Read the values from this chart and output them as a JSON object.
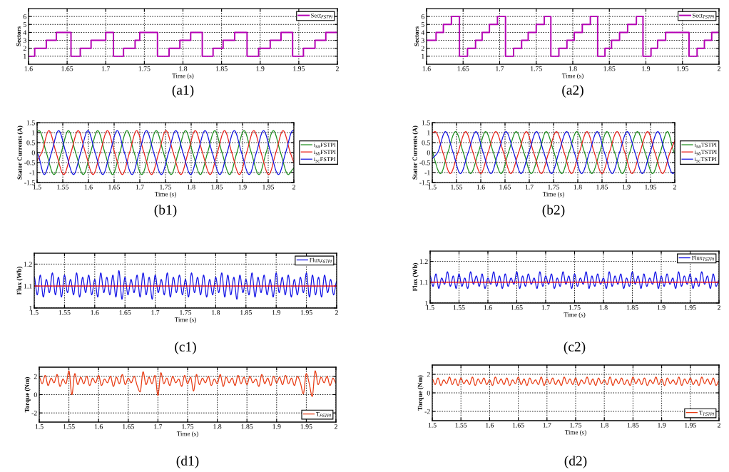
{
  "chart_data": [
    {
      "type": "step",
      "xlabel": "Time (s)",
      "ylabel": "Sectors",
      "annotations": [
        "(a1)"
      ],
      "grid": true,
      "legend": "top right",
      "xlim": [
        1.6,
        2
      ],
      "xticks": [
        1.6,
        1.65,
        1.7,
        1.75,
        1.8,
        1.85,
        1.9,
        1.95,
        2
      ],
      "ylim": [
        0,
        7
      ],
      "yticks": [
        1,
        2,
        3,
        4,
        5,
        6
      ],
      "series": [
        {
          "name": "Sect$_{FSTPI}$",
          "color": "#b400b4",
          "x": [
            1.6,
            1.608,
            1.623,
            1.636,
            1.655,
            1.667,
            1.681,
            1.7,
            1.71,
            1.723,
            1.738,
            1.744,
            1.767,
            1.782,
            1.796,
            1.81,
            1.825,
            1.839,
            1.852,
            1.867,
            1.883,
            1.898,
            1.913,
            1.927,
            1.942,
            1.956,
            1.971,
            1.985,
            2
          ],
          "values": [
            1,
            2,
            3,
            4,
            1,
            2,
            3,
            4,
            1,
            2,
            3,
            4,
            1,
            2,
            3,
            4,
            1,
            2,
            3,
            4,
            1,
            2,
            3,
            4,
            1,
            2,
            3,
            4,
            4
          ]
        }
      ]
    },
    {
      "type": "step",
      "xlabel": "Time (s)",
      "ylabel": "Sectors",
      "annotations": [
        "(a2)"
      ],
      "grid": true,
      "legend": "top right",
      "xlim": [
        1.6,
        2
      ],
      "xticks": [
        1.6,
        1.65,
        1.7,
        1.75,
        1.8,
        1.85,
        1.9,
        1.95,
        2
      ],
      "ylim": [
        0,
        7
      ],
      "yticks": [
        1,
        2,
        3,
        4,
        5,
        6
      ],
      "series": [
        {
          "name": "Sect$_{TSTPI}$",
          "color": "#b400b4",
          "x": [
            1.6,
            1.613,
            1.623,
            1.634,
            1.645,
            1.656,
            1.667,
            1.676,
            1.686,
            1.697,
            1.708,
            1.719,
            1.73,
            1.739,
            1.75,
            1.761,
            1.77,
            1.781,
            1.792,
            1.802,
            1.813,
            1.824,
            1.834,
            1.844,
            1.853,
            1.864,
            1.875,
            1.887,
            1.896,
            1.907,
            1.916,
            1.927,
            1.959,
            1.97,
            1.98,
            1.99,
            2
          ],
          "values": [
            3,
            4,
            5,
            6,
            1,
            2,
            3,
            4,
            5,
            6,
            1,
            2,
            3,
            4,
            5,
            6,
            1,
            2,
            3,
            4,
            5,
            6,
            1,
            2,
            3,
            4,
            5,
            6,
            1,
            2,
            3,
            4,
            1,
            2,
            3,
            4,
            4
          ]
        }
      ]
    },
    {
      "type": "line",
      "xlabel": "Time (s)",
      "ylabel": "Stator Currents (A)",
      "annotations": [
        "(b1)"
      ],
      "grid": true,
      "legend": "right",
      "xlim": [
        1.5,
        2
      ],
      "xticks": [
        1.5,
        1.55,
        1.6,
        1.65,
        1.7,
        1.75,
        1.8,
        1.85,
        1.9,
        1.95,
        2
      ],
      "ylim": [
        -1.5,
        1.5
      ],
      "yticks": [
        -1.5,
        -1,
        -0.5,
        0,
        0.5,
        1,
        1.5
      ],
      "series": [
        {
          "name": "i$_{sa}$FSTPI",
          "color": "#1f8f1f",
          "x": [
            1.5,
            1.504,
            1.518,
            1.533,
            1.547,
            1.561,
            1.575,
            1.59,
            1.604,
            1.618,
            1.632,
            1.647,
            1.661,
            1.675,
            1.689,
            1.704,
            1.718,
            1.732,
            1.746,
            1.761,
            1.775,
            1.789,
            1.803,
            1.818,
            1.832,
            1.846,
            1.86,
            1.875,
            1.889,
            1.903,
            1.917,
            1.932,
            1.946,
            1.96,
            1.974,
            1.989,
            2
          ],
          "values": [
            1.05,
            1.1,
            0,
            -1.1,
            0,
            1.1,
            0,
            -1.1,
            0,
            1.1,
            0,
            -1.1,
            0,
            1.1,
            0,
            -1.1,
            0,
            1.1,
            0,
            -1.1,
            0,
            1.1,
            0,
            -1.1,
            0,
            1.1,
            0,
            -1.1,
            0,
            1.1,
            0,
            -1.1,
            0,
            1.1,
            0,
            -1.1,
            -0.8
          ]
        },
        {
          "name": "i$_{sb}$FSTPI",
          "color": "#e8231c",
          "x": [
            1.5,
            1.509,
            1.523,
            1.537,
            1.552,
            1.566,
            1.58,
            1.594,
            1.609,
            1.623,
            1.637,
            1.651,
            1.666,
            1.68,
            1.694,
            1.708,
            1.723,
            1.737,
            1.751,
            1.765,
            1.78,
            1.794,
            1.808,
            1.822,
            1.837,
            1.851,
            1.865,
            1.879,
            1.894,
            1.908,
            1.922,
            1.936,
            1.951,
            1.965,
            1.979,
            1.993,
            2
          ],
          "values": [
            -0.4,
            0,
            1.1,
            0,
            -1.1,
            0,
            1.1,
            0,
            -1.1,
            0,
            1.1,
            0,
            -1.1,
            0,
            1.1,
            0,
            -1.1,
            0,
            1.1,
            0,
            -1.1,
            0,
            1.1,
            0,
            -1.1,
            0,
            1.1,
            0,
            -1.1,
            0,
            1.1,
            0,
            -1.1,
            0,
            1.1,
            0,
            -0.5
          ]
        },
        {
          "name": "i$_{sc}$FSTPI",
          "color": "#1414e0",
          "x": [
            1.5,
            1.514,
            1.528,
            1.542,
            1.556,
            1.571,
            1.585,
            1.599,
            1.613,
            1.628,
            1.642,
            1.656,
            1.67,
            1.685,
            1.699,
            1.713,
            1.727,
            1.742,
            1.756,
            1.77,
            1.784,
            1.799,
            1.813,
            1.827,
            1.841,
            1.856,
            1.87,
            1.884,
            1.898,
            1.913,
            1.927,
            1.941,
            1.955,
            1.97,
            1.984,
            1.998,
            2
          ],
          "values": [
            -0.05,
            -1.1,
            0,
            1.1,
            0,
            -1.1,
            0,
            1.1,
            0,
            -1.1,
            0,
            1.1,
            0,
            -1.1,
            0,
            1.1,
            0,
            -1.1,
            0,
            1.1,
            0,
            -1.1,
            0,
            1.1,
            0,
            -1.1,
            0,
            1.1,
            0,
            -1.1,
            0,
            1.1,
            0,
            -1.1,
            0,
            1.1,
            1.09
          ]
        }
      ]
    },
    {
      "type": "line",
      "xlabel": "Time (s)",
      "ylabel": "Stator Currents (A)",
      "annotations": [
        "(b2)"
      ],
      "grid": true,
      "legend": "right",
      "xlim": [
        1.5,
        2
      ],
      "xticks": [
        1.5,
        1.55,
        1.6,
        1.65,
        1.7,
        1.75,
        1.8,
        1.85,
        1.9,
        1.95,
        2
      ],
      "ylim": [
        -1.5,
        1.5
      ],
      "yticks": [
        -1.5,
        -1,
        -0.5,
        0,
        0.5,
        1,
        1.5
      ],
      "series": [
        {
          "name": "i$_{sa}$TSTPI",
          "color": "#1f8f1f",
          "x": [
            1.5,
            1.501,
            1.517,
            1.532,
            1.548,
            1.564,
            1.579,
            1.595,
            1.61,
            1.626,
            1.642,
            1.657,
            1.673,
            1.689,
            1.704,
            1.72,
            1.735,
            1.751,
            1.767,
            1.782,
            1.798,
            1.814,
            1.829,
            1.845,
            1.86,
            1.876,
            1.892,
            1.907,
            1.923,
            1.939,
            1.954,
            1.97,
            1.985,
            2
          ],
          "values": [
            0.1,
            0,
            -1.05,
            0,
            1.05,
            0,
            -1.05,
            0,
            1.05,
            0,
            -1.05,
            0,
            1.05,
            0,
            -1.05,
            0,
            1.05,
            0,
            -1.05,
            0,
            1.05,
            0,
            -1.05,
            0,
            1.05,
            0,
            -1.05,
            0,
            1.05,
            0,
            -1.05,
            0,
            1.05,
            0
          ]
        },
        {
          "name": "i$_{sb}$TSTPI",
          "color": "#e8231c",
          "x": [
            1.5,
            1.506,
            1.522,
            1.537,
            1.553,
            1.569,
            1.584,
            1.6,
            1.615,
            1.631,
            1.647,
            1.662,
            1.678,
            1.694,
            1.709,
            1.725,
            1.74,
            1.756,
            1.772,
            1.787,
            1.803,
            1.819,
            1.834,
            1.85,
            1.865,
            1.881,
            1.897,
            1.912,
            1.928,
            1.944,
            1.959,
            1.975,
            1.99,
            2
          ],
          "values": [
            1.0,
            1.05,
            0,
            -1.05,
            0,
            1.05,
            0,
            -1.05,
            0,
            1.05,
            0,
            -1.05,
            0,
            1.05,
            0,
            -1.05,
            0,
            1.05,
            0,
            -1.05,
            0,
            1.05,
            0,
            -1.05,
            0,
            1.05,
            0,
            -1.05,
            0,
            1.05,
            0,
            -1.05,
            0,
            0.6
          ]
        },
        {
          "name": "i$_{sc}$TSTPI",
          "color": "#1414e0",
          "x": [
            1.5,
            1.511,
            1.527,
            1.543,
            1.558,
            1.574,
            1.59,
            1.605,
            1.621,
            1.636,
            1.652,
            1.668,
            1.683,
            1.699,
            1.715,
            1.73,
            1.746,
            1.761,
            1.777,
            1.793,
            1.808,
            1.824,
            1.84,
            1.855,
            1.871,
            1.886,
            1.902,
            1.918,
            1.933,
            1.949,
            1.965,
            1.98,
            1.996,
            2
          ],
          "values": [
            -0.3,
            0,
            1.05,
            0,
            -1.05,
            0,
            1.05,
            0,
            -1.05,
            0,
            1.05,
            0,
            -1.05,
            0,
            1.05,
            0,
            -1.05,
            0,
            1.05,
            0,
            -1.05,
            0,
            1.05,
            0,
            -1.05,
            0,
            1.05,
            0,
            -1.05,
            0,
            1.05,
            0,
            -1.05,
            -1.0
          ]
        }
      ]
    },
    {
      "type": "line",
      "xlabel": "Time (s)",
      "ylabel": "Flux (Wb)",
      "annotations": [
        "(c1)"
      ],
      "grid": true,
      "legend": "top right",
      "xlim": [
        1.5,
        2
      ],
      "xticks": [
        1.5,
        1.55,
        1.6,
        1.65,
        1.7,
        1.75,
        1.8,
        1.85,
        1.9,
        1.95,
        2
      ],
      "ylim": [
        1,
        1.25
      ],
      "yticks": [
        1,
        1.1,
        1.2
      ],
      "x": [
        1.5,
        1.505,
        1.51,
        1.515,
        1.52,
        1.525,
        1.53,
        1.535,
        1.54,
        1.545,
        1.55,
        1.555,
        1.56,
        1.565,
        1.57,
        1.575,
        1.58,
        1.585,
        1.59,
        1.595,
        1.6,
        1.605,
        1.61,
        1.615,
        1.62,
        1.625,
        1.63,
        1.635,
        1.64,
        1.645,
        1.65,
        1.655,
        1.66,
        1.665,
        1.67,
        1.675,
        1.68,
        1.685,
        1.69,
        1.695,
        1.7,
        1.705,
        1.71,
        1.715,
        1.72,
        1.725,
        1.73,
        1.735,
        1.74,
        1.745,
        1.75,
        1.755,
        1.76,
        1.765,
        1.77,
        1.775,
        1.78,
        1.785,
        1.79,
        1.795,
        1.8,
        1.805,
        1.81,
        1.815,
        1.82,
        1.825,
        1.83,
        1.835,
        1.84,
        1.845,
        1.85,
        1.855,
        1.86,
        1.865,
        1.87,
        1.875,
        1.88,
        1.885,
        1.89,
        1.895,
        1.9,
        1.905,
        1.91,
        1.915,
        1.92,
        1.925,
        1.93,
        1.935,
        1.94,
        1.945,
        1.95,
        1.955,
        1.96,
        1.965,
        1.97,
        1.975,
        1.98,
        1.985,
        1.99,
        1.995,
        2
      ],
      "series": [
        {
          "name": "Flux$_{FSTPI}$",
          "color": "#1414e6",
          "values": [
            1.14,
            1.06,
            1.15,
            1.05,
            1.13,
            1.07,
            1.16,
            1.06,
            1.14,
            1.05,
            1.15,
            1.07,
            1.13,
            1.06,
            1.16,
            1.05,
            1.14,
            1.07,
            1.15,
            1.06,
            1.13,
            1.05,
            1.16,
            1.07,
            1.14,
            1.06,
            1.15,
            1.05,
            1.17,
            1.04,
            1.14,
            1.06,
            1.13,
            1.07,
            1.15,
            1.05,
            1.16,
            1.06,
            1.14,
            1.04,
            1.15,
            1.07,
            1.13,
            1.06,
            1.16,
            1.05,
            1.14,
            1.07,
            1.15,
            1.06,
            1.13,
            1.05,
            1.16,
            1.07,
            1.14,
            1.06,
            1.15,
            1.05,
            1.13,
            1.06,
            1.14,
            1.07,
            1.16,
            1.05,
            1.15,
            1.06,
            1.14,
            1.04,
            1.15,
            1.07,
            1.13,
            1.06,
            1.16,
            1.05,
            1.14,
            1.07,
            1.15,
            1.06,
            1.13,
            1.05,
            1.16,
            1.07,
            1.14,
            1.06,
            1.15,
            1.05,
            1.13,
            1.06,
            1.14,
            1.07,
            1.16,
            1.05,
            1.15,
            1.06,
            1.14,
            1.05,
            1.15,
            1.07,
            1.13,
            1.06,
            1.12
          ]
        },
        {
          "color": "#ff0000",
          "x": [
            1.5,
            2
          ],
          "values": [
            1.1,
            1.1
          ]
        }
      ]
    },
    {
      "type": "line",
      "xlabel": "Time (s)",
      "ylabel": "Flux (Wb)",
      "annotations": [
        "(c2)"
      ],
      "grid": true,
      "legend": "top right",
      "xlim": [
        1.5,
        2
      ],
      "xticks": [
        1.5,
        1.55,
        1.6,
        1.65,
        1.7,
        1.75,
        1.8,
        1.85,
        1.9,
        1.95,
        2
      ],
      "ylim": [
        1,
        1.25
      ],
      "yticks": [
        1,
        1.1,
        1.2
      ],
      "x": [
        1.5,
        1.505,
        1.51,
        1.515,
        1.52,
        1.525,
        1.53,
        1.535,
        1.54,
        1.545,
        1.55,
        1.555,
        1.56,
        1.565,
        1.57,
        1.575,
        1.58,
        1.585,
        1.59,
        1.595,
        1.6,
        1.605,
        1.61,
        1.615,
        1.62,
        1.625,
        1.63,
        1.635,
        1.64,
        1.645,
        1.65,
        1.655,
        1.66,
        1.665,
        1.67,
        1.675,
        1.68,
        1.685,
        1.69,
        1.695,
        1.7,
        1.705,
        1.71,
        1.715,
        1.72,
        1.725,
        1.73,
        1.735,
        1.74,
        1.745,
        1.75,
        1.755,
        1.76,
        1.765,
        1.77,
        1.775,
        1.78,
        1.785,
        1.79,
        1.795,
        1.8,
        1.805,
        1.81,
        1.815,
        1.82,
        1.825,
        1.83,
        1.835,
        1.84,
        1.845,
        1.85,
        1.855,
        1.86,
        1.865,
        1.87,
        1.875,
        1.88,
        1.885,
        1.89,
        1.895,
        1.9,
        1.905,
        1.91,
        1.915,
        1.92,
        1.925,
        1.93,
        1.935,
        1.94,
        1.945,
        1.95,
        1.955,
        1.96,
        1.965,
        1.97,
        1.975,
        1.98,
        1.985,
        1.99,
        1.995,
        2
      ],
      "series": [
        {
          "name": "Flux$_{TSTPI}$",
          "color": "#1414e6",
          "values": [
            1.13,
            1.08,
            1.14,
            1.07,
            1.12,
            1.09,
            1.15,
            1.08,
            1.13,
            1.07,
            1.14,
            1.08,
            1.12,
            1.07,
            1.15,
            1.09,
            1.13,
            1.08,
            1.14,
            1.07,
            1.12,
            1.09,
            1.15,
            1.08,
            1.13,
            1.07,
            1.14,
            1.08,
            1.12,
            1.09,
            1.15,
            1.07,
            1.13,
            1.08,
            1.14,
            1.09,
            1.12,
            1.07,
            1.15,
            1.08,
            1.13,
            1.09,
            1.14,
            1.07,
            1.12,
            1.08,
            1.15,
            1.09,
            1.13,
            1.07,
            1.14,
            1.08,
            1.12,
            1.09,
            1.15,
            1.07,
            1.13,
            1.08,
            1.14,
            1.09,
            1.12,
            1.07,
            1.15,
            1.08,
            1.13,
            1.09,
            1.14,
            1.07,
            1.12,
            1.08,
            1.15,
            1.09,
            1.13,
            1.07,
            1.14,
            1.08,
            1.12,
            1.09,
            1.15,
            1.07,
            1.13,
            1.08,
            1.14,
            1.09,
            1.12,
            1.07,
            1.15,
            1.08,
            1.13,
            1.09,
            1.14,
            1.07,
            1.12,
            1.08,
            1.15,
            1.09,
            1.13,
            1.07,
            1.14,
            1.08,
            1.11
          ]
        },
        {
          "color": "#ff0000",
          "x": [
            1.5,
            2
          ],
          "values": [
            1.1,
            1.1
          ]
        }
      ]
    },
    {
      "type": "line",
      "xlabel": "Time (s)",
      "ylabel": "Torque (Nm)",
      "annotations": [
        "(d1)"
      ],
      "grid": true,
      "legend": "bottom right",
      "xlim": [
        1.5,
        2
      ],
      "xticks": [
        1.5,
        1.55,
        1.6,
        1.65,
        1.7,
        1.75,
        1.8,
        1.85,
        1.9,
        1.95,
        2
      ],
      "ylim": [
        -3,
        3
      ],
      "yticks": [
        -2,
        0,
        2
      ],
      "x": [
        1.5,
        1.505,
        1.51,
        1.515,
        1.52,
        1.525,
        1.53,
        1.535,
        1.54,
        1.545,
        1.55,
        1.555,
        1.56,
        1.565,
        1.57,
        1.575,
        1.58,
        1.585,
        1.59,
        1.595,
        1.6,
        1.605,
        1.61,
        1.615,
        1.62,
        1.625,
        1.63,
        1.635,
        1.64,
        1.645,
        1.65,
        1.655,
        1.66,
        1.665,
        1.67,
        1.675,
        1.68,
        1.685,
        1.69,
        1.695,
        1.7,
        1.705,
        1.71,
        1.715,
        1.72,
        1.725,
        1.73,
        1.735,
        1.74,
        1.745,
        1.75,
        1.755,
        1.76,
        1.765,
        1.77,
        1.775,
        1.78,
        1.785,
        1.79,
        1.795,
        1.8,
        1.805,
        1.81,
        1.815,
        1.82,
        1.825,
        1.83,
        1.835,
        1.84,
        1.845,
        1.85,
        1.855,
        1.86,
        1.865,
        1.87,
        1.875,
        1.88,
        1.885,
        1.89,
        1.895,
        1.9,
        1.905,
        1.91,
        1.915,
        1.92,
        1.925,
        1.93,
        1.935,
        1.94,
        1.945,
        1.95,
        1.955,
        1.96,
        1.965,
        1.97,
        1.975,
        1.98,
        1.985,
        1.99,
        1.995,
        2
      ],
      "series": [
        {
          "name": "T$_{FSTPI}$",
          "color": "#e83c14",
          "values": [
            1.9,
            1.2,
            2.1,
            1.0,
            1.8,
            1.3,
            2.2,
            0.9,
            1.7,
            1.2,
            2.6,
            0.0,
            2.3,
            1.1,
            1.9,
            1.2,
            2.0,
            1.0,
            1.8,
            1.3,
            2.1,
            1.0,
            1.7,
            1.3,
            2.0,
            0.9,
            1.9,
            1.2,
            2.2,
            1.1,
            1.8,
            1.3,
            2.0,
            1.0,
            0.3,
            2.5,
            1.1,
            1.9,
            1.2,
            2.1,
            -0.1,
            2.4,
            1.2,
            1.8,
            1.0,
            2.0,
            1.3,
            1.7,
            0.9,
            2.1,
            1.2,
            1.9,
            0.4,
            2.2,
            1.1,
            1.8,
            1.3,
            2.0,
            1.0,
            1.7,
            1.2,
            2.2,
            0.9,
            1.9,
            1.3,
            1.8,
            1.0,
            2.1,
            1.2,
            1.9,
            1.1,
            2.0,
            1.3,
            1.7,
            0.9,
            2.2,
            1.2,
            1.8,
            1.0,
            2.0,
            1.3,
            1.9,
            1.1,
            2.1,
            1.2,
            1.8,
            1.0,
            2.0,
            1.3,
            0.1,
            2.3,
            1.2,
            -0.2,
            2.6,
            1.1,
            1.9,
            1.3,
            2.0,
            1.0,
            1.8,
            1.3
          ]
        }
      ]
    },
    {
      "type": "line",
      "xlabel": "Time (s)",
      "ylabel": "Torque (Nm)",
      "annotations": [
        "(d2)"
      ],
      "grid": true,
      "legend": "bottom right",
      "xlim": [
        1.5,
        2
      ],
      "xticks": [
        1.5,
        1.55,
        1.6,
        1.65,
        1.7,
        1.75,
        1.8,
        1.85,
        1.9,
        1.95,
        2
      ],
      "ylim": [
        -3,
        3
      ],
      "yticks": [
        -2,
        0,
        2
      ],
      "x": [
        1.5,
        1.505,
        1.51,
        1.515,
        1.52,
        1.525,
        1.53,
        1.535,
        1.54,
        1.545,
        1.55,
        1.555,
        1.56,
        1.565,
        1.57,
        1.575,
        1.58,
        1.585,
        1.59,
        1.595,
        1.6,
        1.605,
        1.61,
        1.615,
        1.62,
        1.625,
        1.63,
        1.635,
        1.64,
        1.645,
        1.65,
        1.655,
        1.66,
        1.665,
        1.67,
        1.675,
        1.68,
        1.685,
        1.69,
        1.695,
        1.7,
        1.705,
        1.71,
        1.715,
        1.72,
        1.725,
        1.73,
        1.735,
        1.74,
        1.745,
        1.75,
        1.755,
        1.76,
        1.765,
        1.77,
        1.775,
        1.78,
        1.785,
        1.79,
        1.795,
        1.8,
        1.805,
        1.81,
        1.815,
        1.82,
        1.825,
        1.83,
        1.835,
        1.84,
        1.845,
        1.85,
        1.855,
        1.86,
        1.865,
        1.87,
        1.875,
        1.88,
        1.885,
        1.89,
        1.895,
        1.9,
        1.905,
        1.91,
        1.915,
        1.92,
        1.925,
        1.93,
        1.935,
        1.94,
        1.945,
        1.95,
        1.955,
        1.96,
        1.965,
        1.97,
        1.975,
        1.98,
        1.985,
        1.99,
        1.995,
        2
      ],
      "series": [
        {
          "name": "T$_{TSTPI}$",
          "color": "#e83c14",
          "values": [
            1.5,
            0.9,
            1.6,
            0.8,
            1.4,
            1.0,
            1.7,
            0.9,
            1.5,
            0.8,
            1.6,
            1.0,
            1.4,
            0.9,
            1.7,
            0.8,
            1.5,
            1.0,
            1.6,
            0.9,
            1.4,
            0.8,
            1.7,
            1.0,
            1.5,
            0.9,
            1.6,
            0.8,
            1.4,
            1.0,
            1.7,
            0.9,
            1.5,
            0.8,
            1.6,
            1.0,
            1.4,
            0.9,
            1.7,
            0.8,
            1.5,
            1.0,
            1.6,
            0.9,
            1.4,
            0.8,
            1.7,
            1.0,
            1.5,
            0.9,
            1.6,
            0.8,
            1.4,
            1.0,
            1.7,
            0.9,
            1.5,
            0.8,
            1.6,
            1.0,
            1.4,
            0.9,
            1.7,
            0.8,
            1.5,
            1.0,
            1.6,
            0.9,
            1.4,
            0.8,
            1.7,
            1.0,
            1.5,
            0.9,
            1.6,
            0.8,
            1.4,
            1.0,
            1.7,
            0.9,
            1.5,
            0.8,
            1.6,
            1.0,
            1.4,
            0.9,
            1.7,
            0.8,
            1.5,
            1.0,
            1.6,
            0.9,
            1.4,
            0.8,
            1.7,
            1.0,
            1.5,
            0.9,
            1.6,
            0.8,
            1.3
          ]
        }
      ]
    }
  ]
}
